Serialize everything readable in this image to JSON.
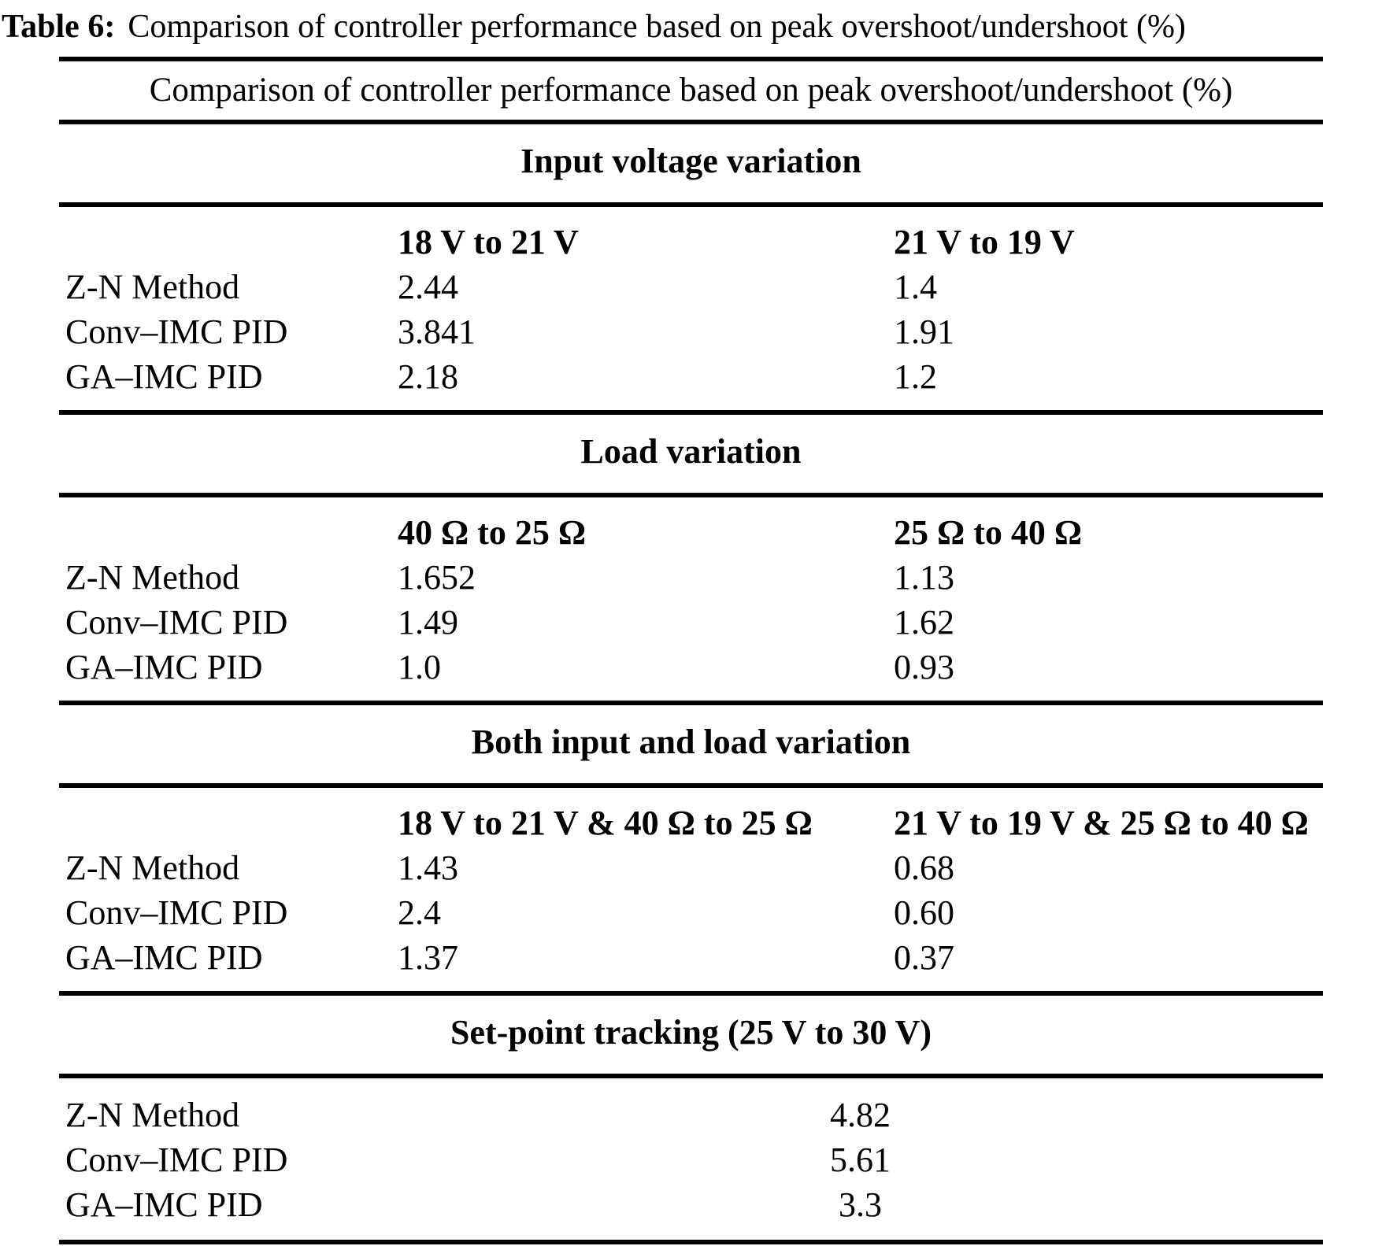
{
  "caption": {
    "label": "Table 6:",
    "text": "Comparison of controller performance based on peak overshoot/undershoot (%)"
  },
  "table": {
    "title": "Comparison of controller performance based on peak overshoot/undershoot (%)",
    "sections": [
      {
        "heading": "Input voltage variation",
        "columns": [
          "18 V to 21 V",
          "21 V to 19 V"
        ],
        "rows": [
          {
            "label": "Z-N Method",
            "values": [
              "2.44",
              "1.4"
            ]
          },
          {
            "label": "Conv–IMC PID",
            "values": [
              "3.841",
              "1.91"
            ]
          },
          {
            "label": "GA–IMC PID",
            "values": [
              "2.18",
              "1.2"
            ]
          }
        ]
      },
      {
        "heading": "Load variation",
        "columns": [
          "40 Ω to 25 Ω",
          "25 Ω to 40 Ω"
        ],
        "rows": [
          {
            "label": "Z-N Method",
            "values": [
              "1.652",
              "1.13"
            ]
          },
          {
            "label": "Conv–IMC PID",
            "values": [
              "1.49",
              "1.62"
            ]
          },
          {
            "label": "GA–IMC PID",
            "values": [
              "1.0",
              "0.93"
            ]
          }
        ]
      },
      {
        "heading": "Both input and load variation",
        "columns": [
          "18 V to 21 V & 40 Ω to 25 Ω",
          "21 V to 19 V & 25 Ω to 40 Ω"
        ],
        "rows": [
          {
            "label": "Z-N Method",
            "values": [
              "1.43",
              "0.68"
            ]
          },
          {
            "label": "Conv–IMC PID",
            "values": [
              "2.4",
              "0.60"
            ]
          },
          {
            "label": "GA–IMC PID",
            "values": [
              "1.37",
              "0.37"
            ]
          }
        ]
      },
      {
        "heading": "Set-point tracking (25 V to 30 V)",
        "columns": [],
        "rows": [
          {
            "label": "Z-N Method",
            "values": [
              "4.82"
            ]
          },
          {
            "label": "Conv–IMC PID",
            "values": [
              "5.61"
            ]
          },
          {
            "label": "GA–IMC PID",
            "values": [
              "3.3"
            ]
          }
        ]
      }
    ]
  }
}
